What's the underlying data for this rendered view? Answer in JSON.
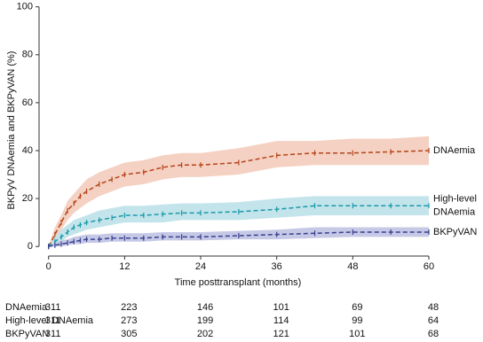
{
  "chart_data": {
    "type": "line",
    "y_label": "BKPyV DNAemia and BKPyVAN (%)",
    "x_label": "Time posttransplant (months)",
    "xlim": [
      -1.5,
      60
    ],
    "ylim": [
      -4,
      101
    ],
    "xticks": [
      0,
      12,
      24,
      36,
      48,
      60
    ],
    "yticks": [
      0,
      20,
      40,
      60,
      80,
      100
    ],
    "grid": false,
    "x": [
      0,
      1,
      2,
      3,
      4,
      5,
      6,
      8,
      10,
      12,
      15,
      18,
      21,
      24,
      30,
      36,
      42,
      48,
      54,
      60
    ],
    "series": [
      {
        "name": "DNAemia",
        "end_label": [
          "DNAemia"
        ],
        "color": "#b5451b",
        "band_color": "#f2c9b7",
        "values": [
          0,
          5,
          10,
          15,
          18,
          21,
          23,
          26,
          28,
          30,
          31,
          33,
          34,
          34,
          35,
          38,
          39,
          39,
          39.5,
          40
        ],
        "lower": [
          0,
          3,
          7,
          11,
          14,
          16,
          18,
          21,
          23,
          25,
          26,
          28,
          29,
          29,
          30,
          33,
          34,
          34,
          34,
          34
        ],
        "upper": [
          0,
          8,
          13,
          19,
          22,
          25,
          28,
          31,
          33,
          35,
          36,
          38,
          39,
          39,
          41,
          44,
          44,
          45,
          45,
          46
        ]
      },
      {
        "name": "High-level DNAemia",
        "end_label": [
          "High-level",
          "DNAemia"
        ],
        "color": "#1a9aa8",
        "band_color": "#b8dfe8",
        "values": [
          0,
          2,
          4,
          6,
          8,
          9,
          10,
          11,
          12,
          13,
          13,
          13.5,
          14,
          14,
          14.5,
          15.5,
          17,
          17,
          17,
          17
        ],
        "lower": [
          0,
          1,
          2,
          4,
          5,
          6,
          7,
          8,
          9,
          10,
          10,
          10,
          11,
          11,
          11,
          12,
          13,
          13,
          13,
          13
        ],
        "upper": [
          0,
          4,
          7,
          9,
          11,
          12,
          13,
          15,
          16,
          17,
          17,
          17.5,
          18,
          18,
          18.5,
          20,
          21,
          21,
          21,
          21
        ]
      },
      {
        "name": "BKPyVAN",
        "end_label": [
          "BKPyVAN"
        ],
        "color": "#3a3f8f",
        "band_color": "#bcc0e2",
        "values": [
          0,
          0.5,
          1,
          1.5,
          2,
          2.5,
          3,
          3,
          3.5,
          3.5,
          3.5,
          4,
          4,
          4,
          4.5,
          5,
          5.5,
          6,
          6,
          6
        ],
        "lower": [
          0,
          0,
          0,
          0.5,
          1,
          1,
          1.5,
          1.5,
          2,
          2,
          2,
          2.5,
          2.5,
          2.5,
          3,
          3,
          3.5,
          4,
          4,
          4
        ],
        "upper": [
          0,
          1.5,
          2.5,
          3,
          4,
          4.5,
          5,
          5,
          5.5,
          5.5,
          5.5,
          6,
          6,
          6,
          6.5,
          7,
          8,
          8,
          8,
          8
        ]
      }
    ],
    "risk_table": {
      "times": [
        0,
        12,
        24,
        36,
        48,
        60
      ],
      "rows": [
        [
          311,
          223,
          146,
          101,
          69,
          48
        ],
        [
          311,
          273,
          199,
          114,
          99,
          64
        ],
        [
          311,
          305,
          202,
          121,
          101,
          68
        ]
      ]
    }
  }
}
